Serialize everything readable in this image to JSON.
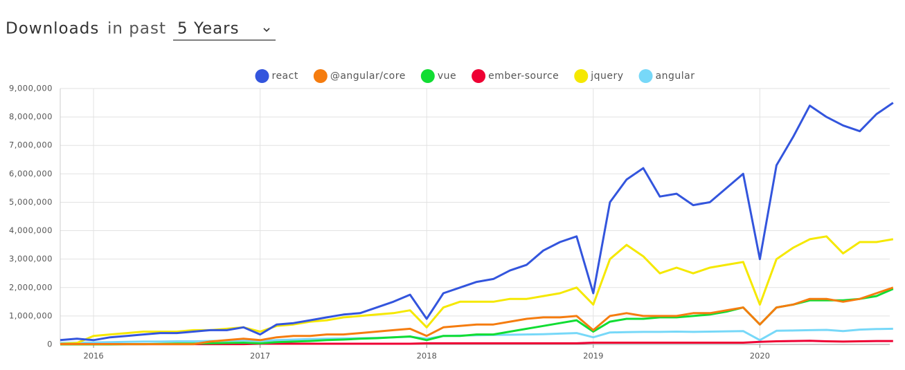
{
  "header": {
    "title": "Downloads",
    "subtitle": "in past",
    "period": "5 Years"
  },
  "chart_data": {
    "type": "line",
    "legend": "top",
    "grid": true,
    "x": [
      2015.8,
      2015.9,
      2016,
      2016.1,
      2016.2,
      2016.3,
      2016.4,
      2016.5,
      2016.6,
      2016.7,
      2016.8,
      2016.9,
      2017,
      2017.1,
      2017.2,
      2017.3,
      2017.4,
      2017.5,
      2017.6,
      2017.7,
      2017.8,
      2017.9,
      2018,
      2018.1,
      2018.2,
      2018.3,
      2018.4,
      2018.5,
      2018.6,
      2018.7,
      2018.8,
      2018.9,
      2019,
      2019.1,
      2019.2,
      2019.3,
      2019.4,
      2019.5,
      2019.6,
      2019.7,
      2019.8,
      2019.9,
      2020,
      2020.1,
      2020.2,
      2020.3,
      2020.4,
      2020.5,
      2020.6,
      2020.7,
      2020.8
    ],
    "xlim": [
      2015.8,
      2020.78
    ],
    "xticks": [
      2016,
      2017,
      2018,
      2019,
      2020
    ],
    "ylim": [
      0,
      9000000
    ],
    "yticks": [
      0,
      {
        "value": 1000000,
        "label": "1,000,000"
      },
      {
        "value": 2000000,
        "label": "2,000,000"
      },
      {
        "value": 3000000,
        "label": "3,000,000"
      },
      {
        "value": 4000000,
        "label": "4,000,000"
      },
      {
        "value": 5000000,
        "label": "5,000,000"
      },
      {
        "value": 6000000,
        "label": "6,000,000"
      },
      {
        "value": 7000000,
        "label": "7,000,000"
      },
      {
        "value": 8000000,
        "label": "8,000,000"
      },
      {
        "value": 9000000,
        "label": "9,000,000"
      }
    ],
    "series": [
      {
        "name": "react",
        "color": "#3355dd",
        "values": [
          150000,
          200000,
          150000,
          250000,
          300000,
          350000,
          400000,
          400000,
          450000,
          500000,
          500000,
          600000,
          350000,
          700000,
          750000,
          850000,
          950000,
          1050000,
          1100000,
          1300000,
          1500000,
          1750000,
          900000,
          1800000,
          2000000,
          2200000,
          2300000,
          2600000,
          2800000,
          3300000,
          3600000,
          3800000,
          1800000,
          5000000,
          5800000,
          6200000,
          5200000,
          5300000,
          4900000,
          5000000,
          5500000,
          6000000,
          3000000,
          6300000,
          7300000,
          8400000,
          8000000,
          7700000,
          7500000,
          8100000,
          8500000
        ]
      },
      {
        "name": "@angular/core",
        "color": "#f57c0f",
        "values": [
          10000,
          10000,
          10000,
          10000,
          10000,
          10000,
          10000,
          10000,
          10000,
          100000,
          150000,
          200000,
          150000,
          250000,
          300000,
          300000,
          350000,
          350000,
          400000,
          450000,
          500000,
          550000,
          300000,
          600000,
          650000,
          700000,
          700000,
          800000,
          900000,
          950000,
          950000,
          1000000,
          500000,
          1000000,
          1100000,
          1000000,
          1000000,
          1000000,
          1100000,
          1100000,
          1200000,
          1300000,
          700000,
          1300000,
          1400000,
          1600000,
          1600000,
          1500000,
          1600000,
          1800000,
          2000000
        ]
      },
      {
        "name": "vue",
        "color": "#11dd33",
        "values": [
          0,
          0,
          0,
          0,
          10000,
          10000,
          20000,
          30000,
          30000,
          40000,
          50000,
          60000,
          40000,
          80000,
          100000,
          120000,
          150000,
          170000,
          200000,
          220000,
          250000,
          280000,
          150000,
          300000,
          300000,
          350000,
          350000,
          450000,
          550000,
          650000,
          750000,
          850000,
          450000,
          800000,
          900000,
          900000,
          950000,
          950000,
          1000000,
          1050000,
          1150000,
          1300000,
          700000,
          1300000,
          1400000,
          1550000,
          1550000,
          1550000,
          1600000,
          1700000,
          1950000
        ]
      },
      {
        "name": "ember-source",
        "color": "#ee0033",
        "values": [
          10000,
          10000,
          10000,
          10000,
          10000,
          10000,
          10000,
          10000,
          10000,
          10000,
          10000,
          10000,
          25000,
          25000,
          25000,
          25000,
          25000,
          25000,
          25000,
          25000,
          25000,
          25000,
          40000,
          40000,
          40000,
          40000,
          40000,
          40000,
          40000,
          40000,
          40000,
          40000,
          60000,
          60000,
          60000,
          60000,
          60000,
          60000,
          60000,
          60000,
          60000,
          60000,
          90000,
          110000,
          120000,
          130000,
          110000,
          100000,
          110000,
          120000,
          120000
        ]
      },
      {
        "name": "jquery",
        "color": "#f5e800",
        "values": [
          20000,
          50000,
          300000,
          350000,
          400000,
          450000,
          450000,
          450000,
          500000,
          500000,
          550000,
          600000,
          450000,
          650000,
          700000,
          800000,
          850000,
          950000,
          1000000,
          1050000,
          1100000,
          1200000,
          600000,
          1300000,
          1500000,
          1500000,
          1500000,
          1600000,
          1600000,
          1700000,
          1800000,
          2000000,
          1400000,
          3000000,
          3500000,
          3100000,
          2500000,
          2700000,
          2500000,
          2700000,
          2800000,
          2900000,
          1400000,
          3000000,
          3400000,
          3700000,
          3800000,
          3200000,
          3600000,
          3600000,
          3700000
        ]
      },
      {
        "name": "angular",
        "color": "#77d8f8",
        "values": [
          50000,
          60000,
          70000,
          80000,
          90000,
          100000,
          100000,
          110000,
          110000,
          120000,
          130000,
          140000,
          120000,
          150000,
          170000,
          190000,
          200000,
          210000,
          220000,
          230000,
          250000,
          270000,
          200000,
          300000,
          310000,
          320000,
          330000,
          340000,
          350000,
          360000,
          380000,
          400000,
          250000,
          420000,
          430000,
          440000,
          440000,
          450000,
          440000,
          450000,
          460000,
          470000,
          150000,
          480000,
          490000,
          500000,
          510000,
          470000,
          520000,
          540000,
          550000
        ]
      }
    ]
  }
}
